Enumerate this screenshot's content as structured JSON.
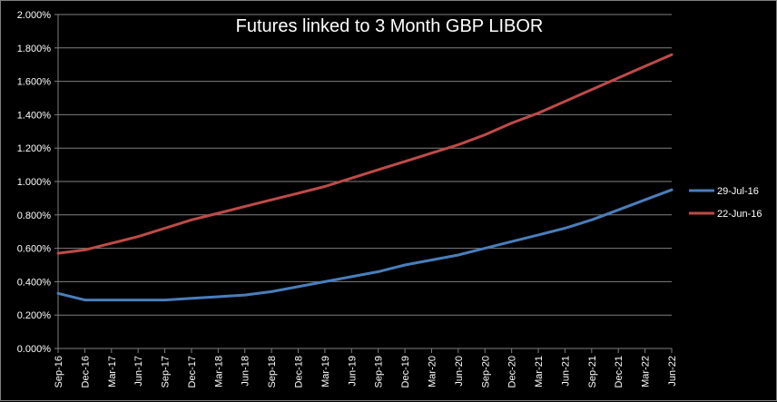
{
  "chart_data": {
    "type": "line",
    "title": "Futures linked to 3 Month GBP LIBOR",
    "xlabel": "",
    "ylabel": "",
    "categories": [
      "Sep-16",
      "Dec-16",
      "Mar-17",
      "Jun-17",
      "Sep-17",
      "Dec-17",
      "Mar-18",
      "Jun-18",
      "Sep-18",
      "Dec-18",
      "Mar-19",
      "Jun-19",
      "Sep-19",
      "Dec-19",
      "Mar-20",
      "Jun-20",
      "Sep-20",
      "Dec-20",
      "Mar-21",
      "Jun-21",
      "Sep-21",
      "Dec-21",
      "Mar-22",
      "Jun-22"
    ],
    "ylim": [
      0,
      2.0
    ],
    "yticks": [
      "0.000%",
      "0.200%",
      "0.400%",
      "0.600%",
      "0.800%",
      "1.000%",
      "1.200%",
      "1.400%",
      "1.600%",
      "1.800%",
      "2.000%"
    ],
    "grid": true,
    "legend_position": "right",
    "series": [
      {
        "name": "29-Jul-16",
        "color": "#4a7ebb",
        "values": [
          0.33,
          0.29,
          0.29,
          0.29,
          0.29,
          0.3,
          0.31,
          0.32,
          0.34,
          0.37,
          0.4,
          0.43,
          0.46,
          0.5,
          0.53,
          0.56,
          0.6,
          0.64,
          0.68,
          0.72,
          0.77,
          0.83,
          0.89,
          0.95
        ]
      },
      {
        "name": "22-Jun-16",
        "color": "#be4b48",
        "values": [
          0.57,
          0.59,
          0.63,
          0.67,
          0.72,
          0.77,
          0.81,
          0.85,
          0.89,
          0.93,
          0.97,
          1.02,
          1.07,
          1.12,
          1.17,
          1.22,
          1.28,
          1.35,
          1.41,
          1.48,
          1.55,
          1.62,
          1.69,
          1.76
        ]
      }
    ]
  }
}
